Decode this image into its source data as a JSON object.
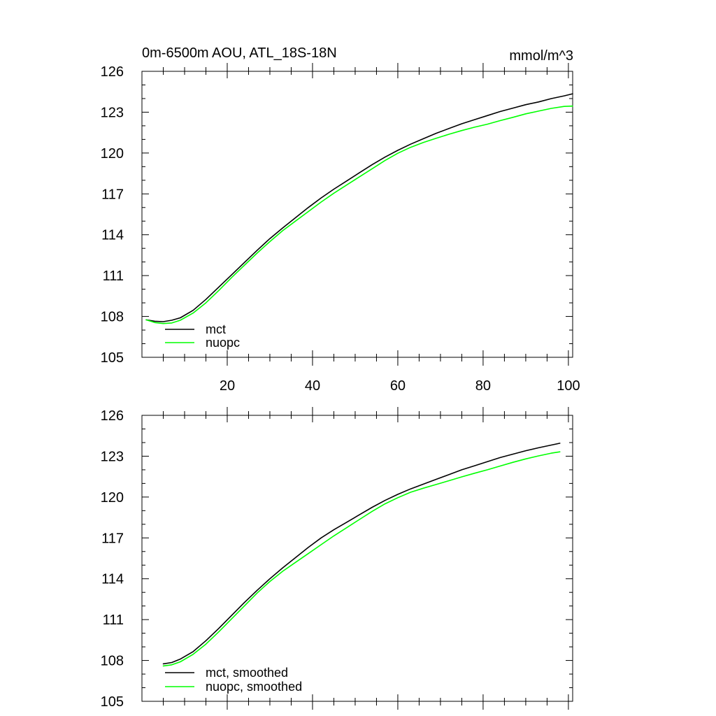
{
  "chart_data": [
    {
      "type": "line",
      "title": "0m-6500m AOU, ATL_18S-18N",
      "units": "mmol/m^3",
      "xlabel": "",
      "ylabel": "",
      "xlim": [
        0,
        101
      ],
      "ylim": [
        105,
        126
      ],
      "xticks": [
        20,
        40,
        60,
        80,
        100
      ],
      "xtick_labels": [
        "20",
        "40",
        "60",
        "80",
        "100"
      ],
      "yticks": [
        105,
        108,
        111,
        114,
        117,
        120,
        123,
        126
      ],
      "ytick_labels": [
        "105",
        "108",
        "111",
        "114",
        "117",
        "120",
        "123",
        "126"
      ],
      "grid": false,
      "legend_position": "bottom-left",
      "series": [
        {
          "name": "mct",
          "color": "#000000",
          "x": [
            1,
            3,
            5,
            7,
            9,
            12,
            15,
            18,
            21,
            24,
            27,
            30,
            33,
            36,
            39,
            42,
            45,
            48,
            51,
            54,
            57,
            60,
            63,
            66,
            69,
            72,
            75,
            78,
            81,
            84,
            87,
            90,
            93,
            96,
            99,
            101
          ],
          "values": [
            107.75,
            107.65,
            107.62,
            107.72,
            107.9,
            108.45,
            109.25,
            110.15,
            111.05,
            111.95,
            112.85,
            113.72,
            114.5,
            115.25,
            116.0,
            116.7,
            117.35,
            117.95,
            118.55,
            119.15,
            119.7,
            120.2,
            120.65,
            121.05,
            121.45,
            121.8,
            122.15,
            122.45,
            122.75,
            123.05,
            123.3,
            123.55,
            123.75,
            124.0,
            124.2,
            124.35
          ]
        },
        {
          "name": "nuopc",
          "color": "#00ff00",
          "x": [
            1,
            3,
            5,
            7,
            9,
            12,
            15,
            18,
            21,
            24,
            27,
            30,
            33,
            36,
            39,
            42,
            45,
            48,
            51,
            54,
            57,
            60,
            63,
            66,
            69,
            72,
            75,
            78,
            81,
            84,
            87,
            90,
            93,
            96,
            99,
            101
          ],
          "values": [
            107.75,
            107.55,
            107.48,
            107.52,
            107.72,
            108.25,
            109.0,
            109.9,
            110.85,
            111.75,
            112.65,
            113.5,
            114.3,
            115.0,
            115.7,
            116.4,
            117.05,
            117.65,
            118.25,
            118.85,
            119.45,
            119.98,
            120.42,
            120.78,
            121.08,
            121.38,
            121.65,
            121.9,
            122.12,
            122.38,
            122.62,
            122.88,
            123.08,
            123.28,
            123.42,
            123.45
          ]
        }
      ]
    },
    {
      "type": "line",
      "title": "",
      "xlabel": "",
      "ylabel": "",
      "xlim": [
        0,
        101
      ],
      "ylim": [
        105,
        126
      ],
      "xticks": [
        20,
        40,
        60,
        80,
        100
      ],
      "xtick_labels": [],
      "yticks": [
        105,
        108,
        111,
        114,
        117,
        120,
        123,
        126
      ],
      "ytick_labels": [
        "105",
        "108",
        "111",
        "114",
        "117",
        "120",
        "123",
        "126"
      ],
      "grid": false,
      "legend_position": "bottom-left",
      "series": [
        {
          "name": "mct, smoothed",
          "color": "#000000",
          "x": [
            5,
            7,
            9,
            12,
            15,
            18,
            21,
            24,
            27,
            30,
            33,
            36,
            39,
            42,
            45,
            48,
            51,
            54,
            57,
            60,
            63,
            66,
            69,
            72,
            75,
            78,
            81,
            84,
            87,
            90,
            93,
            96,
            98
          ],
          "values": [
            107.75,
            107.85,
            108.1,
            108.65,
            109.45,
            110.35,
            111.3,
            112.25,
            113.15,
            114.0,
            114.8,
            115.55,
            116.3,
            117.0,
            117.6,
            118.15,
            118.7,
            119.25,
            119.75,
            120.2,
            120.6,
            120.95,
            121.3,
            121.65,
            122.0,
            122.3,
            122.6,
            122.9,
            123.15,
            123.4,
            123.62,
            123.82,
            123.95
          ]
        },
        {
          "name": "nuopc, smoothed",
          "color": "#00ff00",
          "x": [
            5,
            7,
            9,
            12,
            15,
            18,
            21,
            24,
            27,
            30,
            33,
            36,
            39,
            42,
            45,
            48,
            51,
            54,
            57,
            60,
            63,
            66,
            69,
            72,
            75,
            78,
            81,
            84,
            87,
            90,
            93,
            96,
            98
          ],
          "values": [
            107.6,
            107.68,
            107.9,
            108.45,
            109.2,
            110.1,
            111.05,
            112.0,
            112.95,
            113.8,
            114.55,
            115.2,
            115.85,
            116.5,
            117.15,
            117.75,
            118.35,
            118.95,
            119.5,
            119.95,
            120.35,
            120.65,
            120.92,
            121.2,
            121.48,
            121.75,
            122.0,
            122.28,
            122.55,
            122.8,
            123.02,
            123.22,
            123.32
          ]
        }
      ]
    }
  ]
}
